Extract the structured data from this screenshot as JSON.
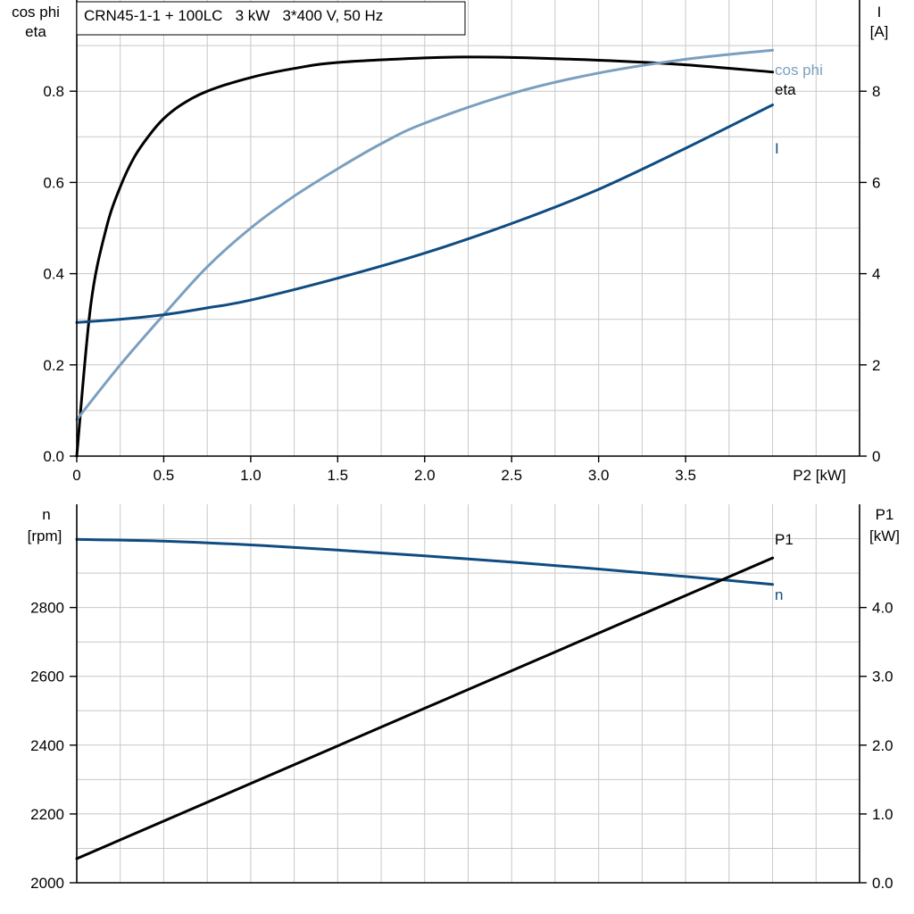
{
  "colors": {
    "black": "#000000",
    "dark_blue": "#0f4c81",
    "light_blue": "#7b9fbf",
    "grid": "#c8c8c8"
  },
  "chart_data": [
    {
      "type": "line",
      "title": "CRN45-1-1 + 100LC   3 kW   3*400 V, 50 Hz",
      "xlabel": "P2 [kW]",
      "xlim": [
        0,
        4.5
      ],
      "x_ticks": [
        "0",
        "0.5",
        "1.0",
        "1.5",
        "2.0",
        "2.5",
        "3.0",
        "3.5"
      ],
      "y_left": {
        "label_line1": "cos phi",
        "label_line2": "eta",
        "lim": [
          0,
          1.0
        ],
        "ticks": [
          "0.0",
          "0.2",
          "0.4",
          "0.6",
          "0.8"
        ]
      },
      "y_right": {
        "label_line1": "I",
        "label_line2": "[A]",
        "lim": [
          0,
          10
        ],
        "ticks": [
          "0",
          "2",
          "4",
          "6",
          "8"
        ]
      },
      "grid": true,
      "series": [
        {
          "name": "eta",
          "axis": "left",
          "color": "#000000",
          "x": [
            0,
            0.08,
            0.17,
            0.25,
            0.33,
            0.42,
            0.5,
            0.6,
            0.75,
            1.0,
            1.25,
            1.5,
            2.0,
            2.25,
            2.5,
            3.0,
            3.5,
            4.0
          ],
          "y": [
            0,
            0.33,
            0.5,
            0.59,
            0.655,
            0.705,
            0.74,
            0.77,
            0.8,
            0.83,
            0.85,
            0.863,
            0.873,
            0.875,
            0.874,
            0.868,
            0.858,
            0.842
          ]
        },
        {
          "name": "cos phi",
          "axis": "left",
          "color": "#7b9fbf",
          "x": [
            0,
            0.25,
            0.5,
            0.75,
            1.0,
            1.25,
            1.5,
            1.75,
            2.0,
            2.5,
            3.0,
            3.5,
            4.0
          ],
          "y": [
            0.08,
            0.2,
            0.31,
            0.415,
            0.5,
            0.57,
            0.63,
            0.685,
            0.73,
            0.795,
            0.84,
            0.87,
            0.89
          ]
        },
        {
          "name": "I",
          "axis": "right",
          "color": "#0f4c81",
          "x": [
            0,
            0.25,
            0.5,
            0.75,
            1.0,
            1.5,
            2.0,
            2.5,
            3.0,
            3.5,
            4.0
          ],
          "y": [
            2.93,
            3.0,
            3.1,
            3.25,
            3.42,
            3.9,
            4.45,
            5.1,
            5.85,
            6.75,
            7.7
          ]
        }
      ]
    },
    {
      "type": "line",
      "xlim": [
        0,
        4.5
      ],
      "y_left": {
        "label_line1": "n",
        "label_line2": "[rpm]",
        "lim": [
          2000,
          3100
        ],
        "ticks": [
          "2000",
          "2200",
          "2400",
          "2600",
          "2800"
        ]
      },
      "y_right": {
        "label_line1": "P1",
        "label_line2": "[kW]",
        "lim": [
          0,
          5.5
        ],
        "ticks": [
          "0.0",
          "1.0",
          "2.0",
          "3.0",
          "4.0"
        ]
      },
      "grid": true,
      "series": [
        {
          "name": "n",
          "axis": "left",
          "color": "#0f4c81",
          "x": [
            0,
            0.5,
            1.0,
            1.5,
            2.0,
            2.5,
            3.0,
            3.5,
            4.0
          ],
          "y": [
            2998,
            2993,
            2982,
            2967,
            2950,
            2932,
            2912,
            2890,
            2867
          ]
        },
        {
          "name": "P1",
          "axis": "right",
          "color": "#000000",
          "x": [
            0,
            4.0
          ],
          "y": [
            0.35,
            4.72
          ]
        }
      ]
    }
  ]
}
